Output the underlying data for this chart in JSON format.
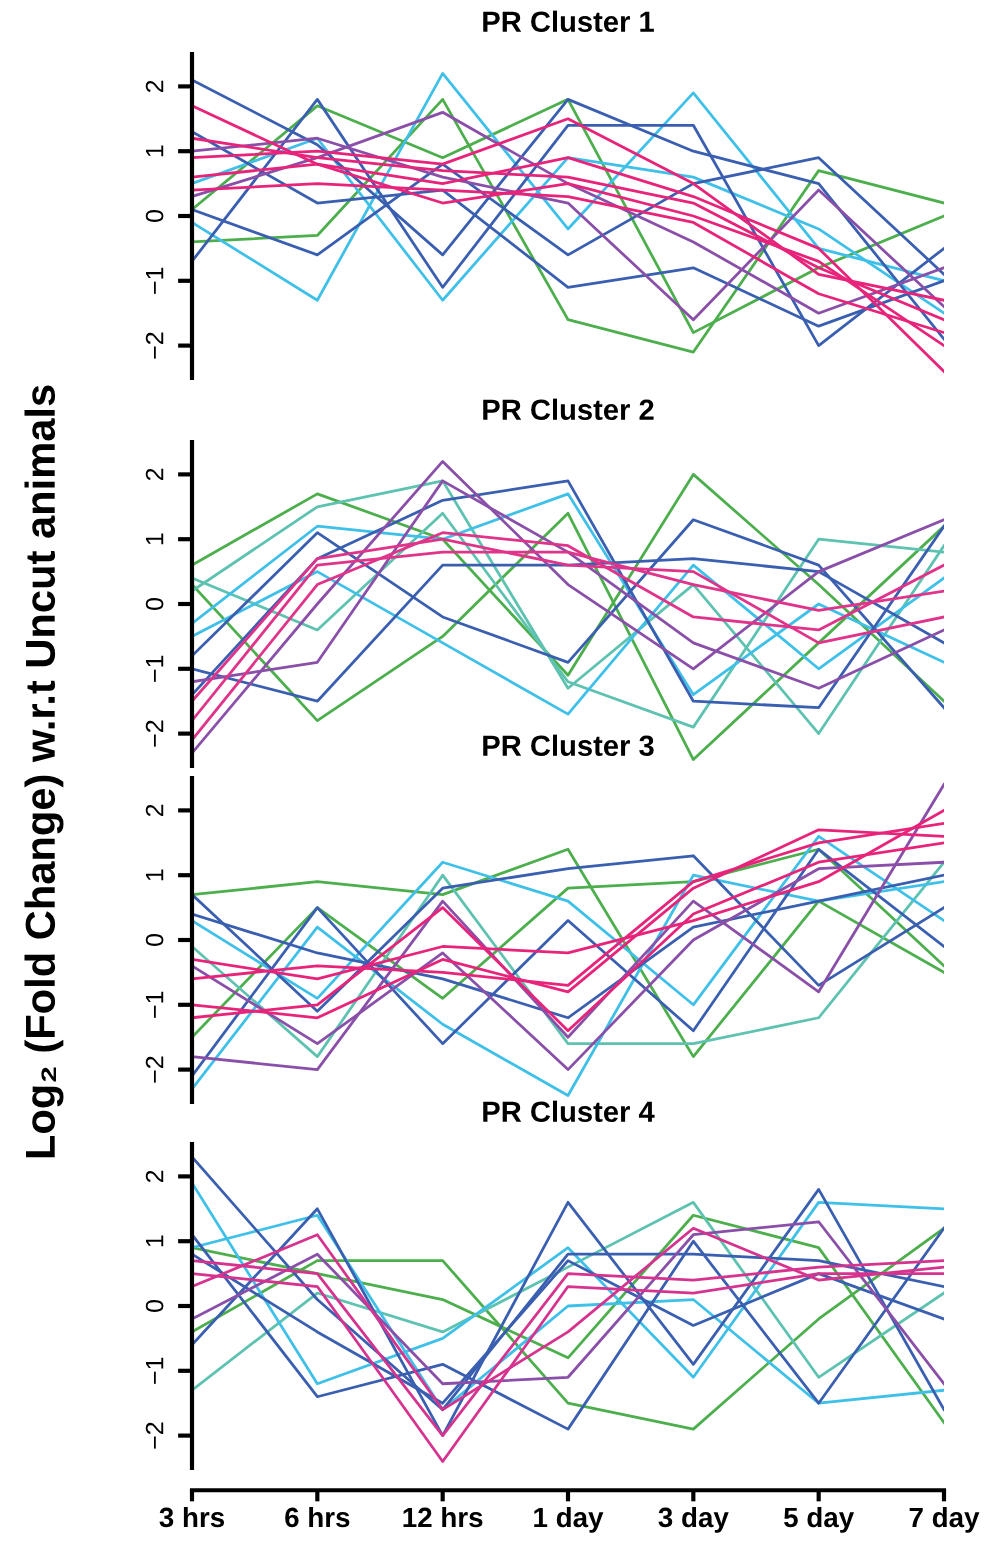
{
  "chart_data": [
    {
      "type": "line",
      "title": "PR Cluster 1",
      "ylabel": "Log₂ (Fold Change) w.r.t Uncut animals",
      "ylim": [
        -2.5,
        2.5
      ],
      "yticks": [
        -2,
        -1,
        0,
        1,
        2
      ],
      "tick_labels": "y",
      "series": [
        {
          "color": "#4cae4c",
          "values": [
            -0.4,
            -0.3,
            1.8,
            -1.6,
            -2.1,
            0.7,
            0.2
          ]
        },
        {
          "color": "#4cae4c",
          "values": [
            0.1,
            1.7,
            0.9,
            1.8,
            -1.8,
            -0.8,
            0.0
          ]
        },
        {
          "color": "#3fc0e8",
          "values": [
            -0.1,
            -1.3,
            2.2,
            -0.2,
            1.9,
            -0.5,
            -1.0
          ]
        },
        {
          "color": "#3fc0e8",
          "values": [
            0.5,
            1.2,
            -1.3,
            0.9,
            0.6,
            -0.2,
            -1.5
          ]
        },
        {
          "color": "#3a5fb0",
          "values": [
            2.1,
            1.1,
            -0.6,
            1.8,
            1.0,
            0.5,
            -1.9
          ]
        },
        {
          "color": "#3a5fb0",
          "values": [
            -0.7,
            1.8,
            -1.1,
            1.4,
            1.4,
            -2.0,
            -0.5
          ]
        },
        {
          "color": "#3a5fb0",
          "values": [
            0.1,
            -0.6,
            0.8,
            -0.6,
            0.5,
            0.9,
            -0.9
          ]
        },
        {
          "color": "#3a5fb0",
          "values": [
            1.3,
            0.2,
            0.4,
            -1.1,
            -0.8,
            -1.7,
            -1.0
          ]
        },
        {
          "color": "#8a4fa8",
          "values": [
            0.3,
            0.9,
            1.6,
            0.5,
            -0.4,
            -1.5,
            -0.8
          ]
        },
        {
          "color": "#8a4fa8",
          "values": [
            1.0,
            1.2,
            0.6,
            0.2,
            -1.6,
            0.4,
            -1.4
          ]
        },
        {
          "color": "#e8237a",
          "values": [
            1.2,
            0.9,
            0.7,
            0.6,
            0.2,
            -0.8,
            -1.6
          ]
        },
        {
          "color": "#e8237a",
          "values": [
            0.6,
            0.8,
            0.5,
            0.9,
            0.3,
            -0.5,
            -2.4
          ]
        },
        {
          "color": "#e8237a",
          "values": [
            0.9,
            1.0,
            0.8,
            1.5,
            0.5,
            -0.9,
            -1.3
          ]
        },
        {
          "color": "#e8237a",
          "values": [
            0.4,
            0.5,
            0.4,
            0.3,
            -0.1,
            -1.2,
            -1.8
          ]
        },
        {
          "color": "#e8237a",
          "values": [
            1.7,
            0.8,
            0.2,
            0.5,
            0.0,
            -0.7,
            -2.0
          ]
        }
      ]
    },
    {
      "type": "line",
      "title": "PR Cluster 2",
      "ylim": [
        -2.5,
        2.5
      ],
      "yticks": [
        -2,
        -1,
        0,
        1,
        2
      ],
      "tick_labels": "y",
      "series": [
        {
          "color": "#4cae4c",
          "values": [
            0.6,
            1.7,
            1.0,
            -1.1,
            2.0,
            0.3,
            -1.5
          ]
        },
        {
          "color": "#4cae4c",
          "values": [
            0.3,
            -1.8,
            -0.5,
            1.4,
            -2.4,
            -0.6,
            1.2
          ]
        },
        {
          "color": "#5ec2b0",
          "values": [
            0.2,
            1.5,
            1.9,
            -1.3,
            0.3,
            -2.0,
            0.9
          ]
        },
        {
          "color": "#5ec2b0",
          "values": [
            0.4,
            -0.4,
            1.4,
            -1.2,
            -1.9,
            1.0,
            0.8
          ]
        },
        {
          "color": "#3fc0e8",
          "values": [
            -0.3,
            1.2,
            1.0,
            1.7,
            -1.4,
            0.0,
            -0.9
          ]
        },
        {
          "color": "#3fc0e8",
          "values": [
            -0.5,
            0.5,
            -0.6,
            -1.7,
            0.6,
            -1.0,
            0.4
          ]
        },
        {
          "color": "#3a5fb0",
          "values": [
            -1.4,
            0.7,
            1.6,
            1.9,
            -1.5,
            -1.6,
            1.2
          ]
        },
        {
          "color": "#3a5fb0",
          "values": [
            -0.8,
            1.1,
            -0.2,
            -0.9,
            1.3,
            0.6,
            -1.6
          ]
        },
        {
          "color": "#3a5fb0",
          "values": [
            -1.0,
            -1.5,
            0.6,
            0.6,
            0.7,
            0.5,
            -0.6
          ]
        },
        {
          "color": "#8a4fa8",
          "values": [
            -2.3,
            0.0,
            2.2,
            0.3,
            -1.0,
            0.5,
            1.3
          ]
        },
        {
          "color": "#8a4fa8",
          "values": [
            -1.2,
            -0.9,
            1.9,
            0.8,
            -0.6,
            -1.3,
            -0.4
          ]
        },
        {
          "color": "#e0338a",
          "values": [
            -2.1,
            0.3,
            1.1,
            0.9,
            -0.2,
            -0.4,
            0.6
          ]
        },
        {
          "color": "#e0338a",
          "values": [
            -1.8,
            0.6,
            0.8,
            0.8,
            0.3,
            -0.1,
            0.2
          ]
        },
        {
          "color": "#e0338a",
          "values": [
            -1.5,
            0.7,
            1.0,
            0.6,
            0.5,
            -0.6,
            -0.2
          ]
        }
      ]
    },
    {
      "type": "line",
      "title": "PR Cluster 3",
      "ylim": [
        -2.5,
        2.5
      ],
      "yticks": [
        -2,
        -1,
        0,
        1,
        2
      ],
      "tick_labels": "y",
      "series": [
        {
          "color": "#4cae4c",
          "values": [
            0.7,
            0.9,
            0.7,
            1.4,
            -1.8,
            0.6,
            -0.5
          ]
        },
        {
          "color": "#4cae4c",
          "values": [
            -1.5,
            0.5,
            -0.9,
            0.8,
            0.9,
            1.4,
            -0.4
          ]
        },
        {
          "color": "#5ec2b0",
          "values": [
            -0.1,
            -1.8,
            1.0,
            -1.6,
            -1.6,
            -1.2,
            1.2
          ]
        },
        {
          "color": "#3fc0e8",
          "values": [
            -2.3,
            0.2,
            -1.3,
            -2.4,
            1.0,
            0.6,
            0.9
          ]
        },
        {
          "color": "#3fc0e8",
          "values": [
            0.3,
            -0.9,
            1.2,
            0.6,
            -1.0,
            1.6,
            0.3
          ]
        },
        {
          "color": "#3a5fb0",
          "values": [
            0.7,
            -1.1,
            0.8,
            1.1,
            1.3,
            -0.7,
            0.5
          ]
        },
        {
          "color": "#3a5fb0",
          "values": [
            -2.1,
            0.5,
            -1.6,
            0.3,
            -1.4,
            1.4,
            -0.1
          ]
        },
        {
          "color": "#3a5fb0",
          "values": [
            0.4,
            -0.2,
            -0.6,
            -1.2,
            0.2,
            0.6,
            1.0
          ]
        },
        {
          "color": "#8a4fa8",
          "values": [
            -1.8,
            -2.0,
            0.6,
            -1.5,
            0.6,
            -0.8,
            2.4
          ]
        },
        {
          "color": "#8a4fa8",
          "values": [
            -0.4,
            -1.6,
            -0.2,
            -2.0,
            0.0,
            1.1,
            1.2
          ]
        },
        {
          "color": "#e8237a",
          "values": [
            -1.0,
            -1.2,
            -0.3,
            -0.8,
            0.8,
            1.7,
            1.6
          ]
        },
        {
          "color": "#e8237a",
          "values": [
            -0.3,
            -0.6,
            -0.1,
            -0.2,
            0.3,
            0.9,
            2.0
          ]
        },
        {
          "color": "#e8237a",
          "values": [
            -1.2,
            -1.0,
            0.5,
            -1.4,
            0.4,
            1.2,
            1.5
          ]
        },
        {
          "color": "#e8237a",
          "values": [
            -0.6,
            -0.4,
            -0.5,
            -0.7,
            0.9,
            1.5,
            1.8
          ]
        }
      ]
    },
    {
      "type": "line",
      "title": "PR Cluster 4",
      "categories": [
        "3 hrs",
        "6 hrs",
        "12 hrs",
        "1 day",
        "3 day",
        "5 day",
        "7 day"
      ],
      "ylim": [
        -2.5,
        2.5
      ],
      "yticks": [
        -2,
        -1,
        0,
        1,
        2
      ],
      "series": [
        {
          "color": "#4cae4c",
          "values": [
            -0.4,
            0.7,
            0.7,
            -1.5,
            -1.9,
            -0.2,
            1.2
          ]
        },
        {
          "color": "#4cae4c",
          "values": [
            0.9,
            0.5,
            0.1,
            -0.8,
            1.4,
            0.9,
            -1.8
          ]
        },
        {
          "color": "#5ec2b0",
          "values": [
            -1.3,
            0.2,
            -0.4,
            0.6,
            1.6,
            -1.1,
            0.2
          ]
        },
        {
          "color": "#3fc0e8",
          "values": [
            1.9,
            -1.2,
            -0.5,
            0.9,
            -1.1,
            1.6,
            1.5
          ]
        },
        {
          "color": "#3fc0e8",
          "values": [
            0.9,
            1.4,
            -1.6,
            0.0,
            0.1,
            -1.5,
            -1.3
          ]
        },
        {
          "color": "#3a5fb0",
          "values": [
            2.3,
            0.1,
            -1.6,
            0.8,
            0.8,
            0.7,
            0.3
          ]
        },
        {
          "color": "#3a5fb0",
          "values": [
            -0.6,
            1.5,
            -2.0,
            1.6,
            -0.9,
            1.8,
            -1.6
          ]
        },
        {
          "color": "#3a5fb0",
          "values": [
            1.1,
            -1.4,
            -0.9,
            -1.9,
            1.0,
            -1.5,
            1.2
          ]
        },
        {
          "color": "#3a5fb0",
          "values": [
            0.8,
            -0.4,
            -1.5,
            0.7,
            -0.3,
            0.5,
            -0.2
          ]
        },
        {
          "color": "#8a4fa8",
          "values": [
            -0.2,
            0.8,
            -1.2,
            -1.1,
            1.1,
            1.3,
            -1.2
          ]
        },
        {
          "color": "#d6338f",
          "values": [
            0.3,
            1.1,
            -1.6,
            -0.4,
            1.2,
            0.4,
            0.6
          ]
        },
        {
          "color": "#d6338f",
          "values": [
            0.7,
            0.5,
            -2.0,
            0.5,
            0.4,
            0.6,
            0.7
          ]
        },
        {
          "color": "#d6338f",
          "values": [
            0.5,
            0.3,
            -2.4,
            0.3,
            0.2,
            0.5,
            0.5
          ]
        }
      ]
    }
  ]
}
